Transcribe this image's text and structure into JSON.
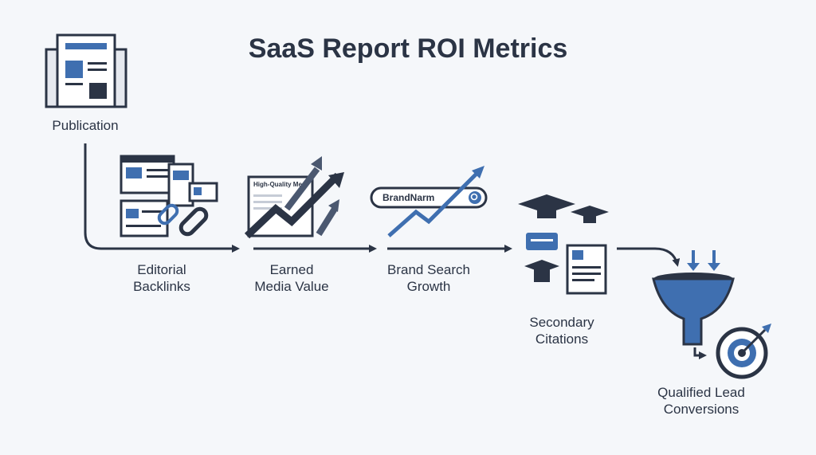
{
  "title": "SaaS Report ROI Metrics",
  "nodes": [
    {
      "label": "Publication"
    },
    {
      "label": "Editorial\nBacklinks"
    },
    {
      "label": "Earned\nMedia Value",
      "icon_text": "High-Quality Me"
    },
    {
      "label": "Brand Search\nGrowth",
      "icon_text": "BrandNarm"
    },
    {
      "label": "Secondary\nCitations"
    },
    {
      "label": "Qualified Lead\nConversions"
    }
  ]
}
